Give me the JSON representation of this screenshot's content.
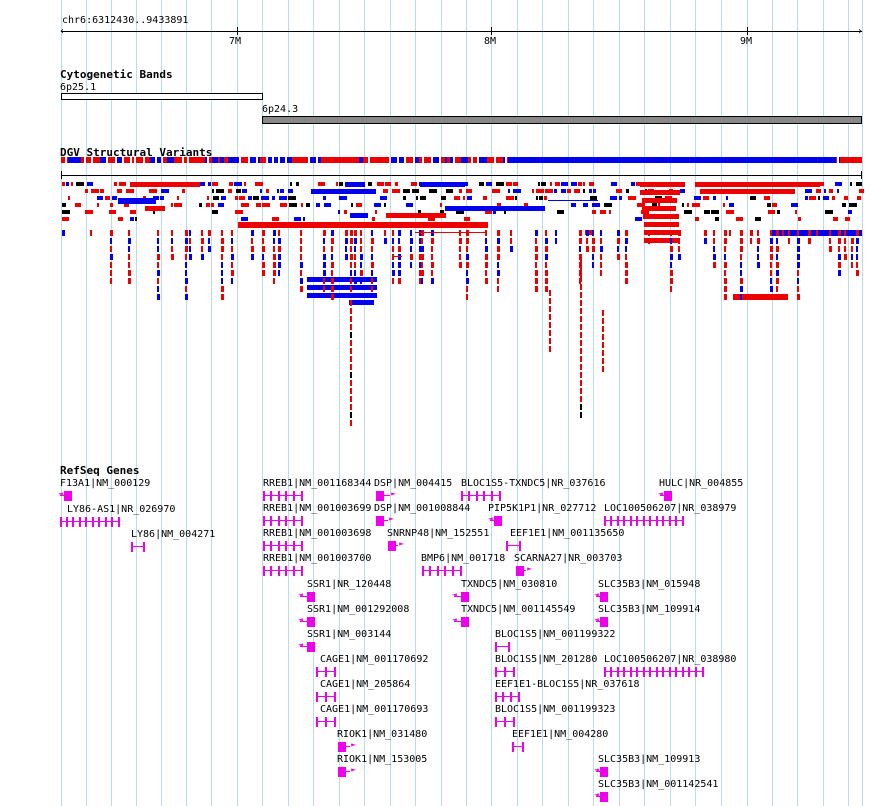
{
  "ruler": {
    "locus": "chr6:6312430..9433891",
    "ticks": [
      "7M",
      "8M",
      "9M"
    ]
  },
  "cytoband_track": {
    "title": "Cytogenetic Bands",
    "bands": [
      "6p25.1",
      "6p24.3"
    ]
  },
  "dgv_track": {
    "title": "DGV Structural Variants",
    "colors": {
      "gain": "#0000ee",
      "loss": "#ee0000",
      "both": "#000000"
    }
  },
  "refseq_track": {
    "title": "RefSeq Genes",
    "color": "#ee00ee",
    "genes": [
      "F13A1|NM_000129",
      "LY86-AS1|NR_026970",
      "LY86|NM_004271",
      "RREB1|NM_001168344",
      "RREB1|NM_001003699",
      "RREB1|NM_001003698",
      "RREB1|NM_001003700",
      "DSP|NM_004415",
      "DSP|NM_001008844",
      "SNRNP48|NM_152551",
      "SSR1|NR_120448",
      "SSR1|NM_001292008",
      "SSR1|NM_003144",
      "CAGE1|NM_001170692",
      "CAGE1|NM_205864",
      "CAGE1|NM_001170693",
      "RIOK1|NM_031480",
      "RIOK1|NM_153005",
      "BMP6|NM_001718",
      "BLOC1S5-TXNDC5|NR_037616",
      "PIP5K1P1|NR_027712",
      "EEF1E1|NM_001135650",
      "SCARNA27|NR_003703",
      "TXNDC5|NM_030810",
      "TXNDC5|NM_001145549",
      "BLOC1S5|NM_001199322",
      "BLOC1S5|NM_201280",
      "EEF1E1-BLOC1S5|NR_037618",
      "BLOC1S5|NM_001199323",
      "EEF1E1|NM_004280",
      "HULC|NR_004855",
      "LOC100506207|NR_038979",
      "LOC100506207|NR_038980",
      "SLC35B3|NM_015948",
      "SLC35B3|NM_109914",
      "SLC35B3|NM_109913",
      "SLC35B3|NM_001142541"
    ]
  }
}
